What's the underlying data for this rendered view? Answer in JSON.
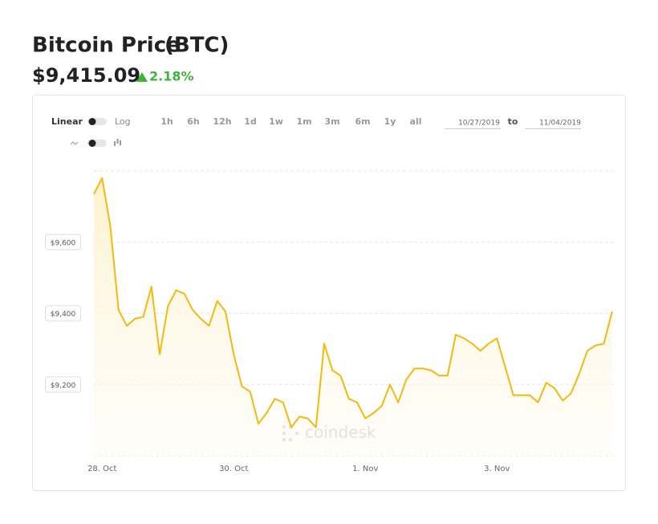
{
  "header": {
    "title": "Bitcoin Price",
    "ticker": "(BTC)",
    "price": "$9,415.09",
    "change": "2.18%"
  },
  "controls": {
    "scales": [
      "Linear",
      "Log"
    ],
    "ranges": [
      "1h",
      "6h",
      "12h",
      "1d",
      "1w",
      "1m",
      "3m",
      "6m",
      "1y",
      "all"
    ],
    "date_from": "10/27/2019",
    "date_separator": "to",
    "date_to": "11/04/2019"
  },
  "watermark": "coindesk",
  "chart_data": {
    "type": "area",
    "color": "#f5b90c",
    "categories": [
      null,
      "28. Oct",
      null,
      null,
      null,
      null,
      null,
      null,
      null,
      null,
      null,
      null,
      null,
      null,
      null,
      null,
      null,
      "30. Oct",
      null,
      null,
      null,
      null,
      null,
      null,
      null,
      null,
      null,
      null,
      null,
      null,
      null,
      null,
      null,
      "1. Nov",
      null,
      null,
      null,
      null,
      null,
      null,
      null,
      null,
      null,
      null,
      null,
      null,
      null,
      null,
      null,
      "3. Nov",
      null,
      null,
      null,
      null,
      null,
      null,
      null,
      null,
      null,
      null,
      null,
      null,
      null,
      null
    ],
    "values": [
      9735,
      9780,
      9645,
      9410,
      9365,
      9385,
      9390,
      9475,
      9285,
      9420,
      9465,
      9455,
      9410,
      9385,
      9365,
      9435,
      9405,
      9285,
      9195,
      9180,
      9090,
      9120,
      9160,
      9150,
      9080,
      9110,
      9105,
      9080,
      9315,
      9240,
      9225,
      9160,
      9150,
      9105,
      9120,
      9140,
      9200,
      9150,
      9215,
      9245,
      9245,
      9240,
      9225,
      9225,
      9340,
      9330,
      9315,
      9295,
      9315,
      9330,
      9250,
      9170,
      9170,
      9170,
      9150,
      9205,
      9190,
      9155,
      9175,
      9230,
      9295,
      9310,
      9315,
      9405
    ],
    "ylim": [
      9000,
      9800
    ],
    "yticks": [
      {
        "value": 9200,
        "label": "$9,200"
      },
      {
        "value": 9400,
        "label": "$9,400"
      },
      {
        "value": 9600,
        "label": "$9,600"
      }
    ],
    "grid": true
  }
}
